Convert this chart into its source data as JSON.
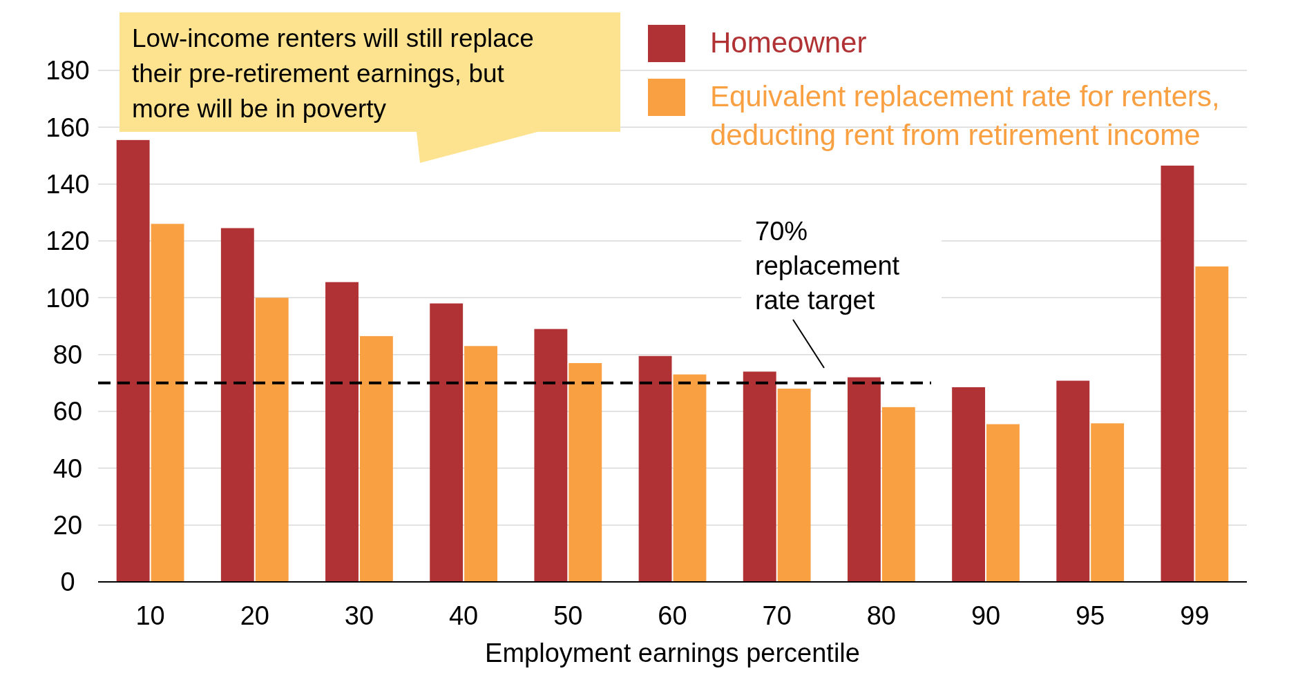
{
  "chart_data": {
    "type": "bar",
    "xlabel": "Employment earnings percentile",
    "categories": [
      "10",
      "20",
      "30",
      "40",
      "50",
      "60",
      "70",
      "80",
      "90",
      "95",
      "99"
    ],
    "series": [
      {
        "name": "Homeowner",
        "color": "#b03234",
        "values": [
          155.5,
          124.5,
          105.5,
          98,
          89,
          79.5,
          74,
          72,
          68.5,
          70.8,
          146.5
        ]
      },
      {
        "name": "Equivalent replacement rate for renters, deducting rent from retirement income",
        "color": "#f9a043",
        "values": [
          126,
          100,
          86.5,
          83,
          77,
          73,
          68,
          61.5,
          55.5,
          55.8,
          111
        ]
      }
    ],
    "ylim": [
      0,
      180
    ],
    "yticks": [
      0,
      20,
      40,
      60,
      80,
      100,
      120,
      140,
      160,
      180
    ],
    "grid": "y",
    "legend": "top right",
    "ref_lines": [
      {
        "axis": "y",
        "value": 70,
        "label": "70% replacement rate target",
        "line_style": "dashed",
        "color": "#000000"
      }
    ],
    "annotations": [
      "Low-income renters will still replace their pre-retirement earnings, but more will be in poverty"
    ]
  }
}
